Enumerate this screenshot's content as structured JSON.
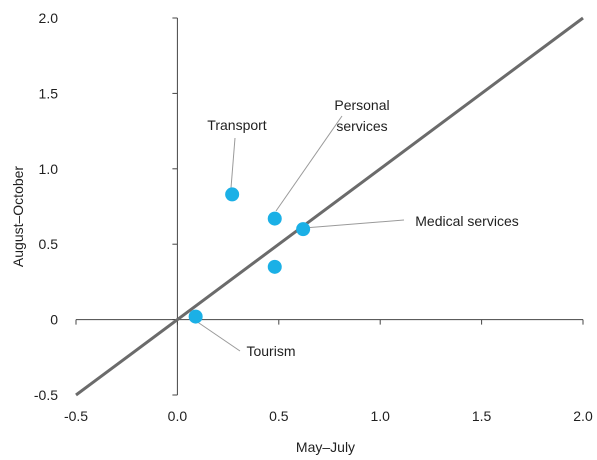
{
  "chart_data": {
    "type": "scatter",
    "xlabel": "May–July",
    "ylabel": "August–October",
    "xlim": [
      -0.5,
      2.0
    ],
    "ylim": [
      -0.5,
      2.0
    ],
    "xticks": [
      "-0.5",
      "0.0",
      "0.5",
      "1.0",
      "1.5",
      "2.0"
    ],
    "yticks": [
      "2.0",
      "1.5",
      "1.0",
      "0.5",
      "0",
      "-0.5"
    ],
    "grid": false,
    "reference_line": {
      "from": [
        -0.5,
        -0.5
      ],
      "to": [
        2.0,
        2.0
      ],
      "color": "#6b6b6b"
    },
    "point_color": "#1bb0e6",
    "points": [
      {
        "label": "Transport",
        "x": 0.27,
        "y": 0.83
      },
      {
        "label": "Personal services",
        "x": 0.48,
        "y": 0.67
      },
      {
        "label": "Medical services",
        "x": 0.62,
        "y": 0.6
      },
      {
        "label": "",
        "x": 0.48,
        "y": 0.35
      },
      {
        "label": "Tourism",
        "x": 0.09,
        "y": 0.02
      }
    ],
    "annotations": [
      {
        "name": "annotation-transport",
        "lines": [
          "Transport"
        ],
        "point_index": 0
      },
      {
        "name": "annotation-personal-services",
        "lines": [
          "Personal",
          "services"
        ],
        "point_index": 1
      },
      {
        "name": "annotation-medical-services",
        "lines": [
          "Medical services"
        ],
        "point_index": 2
      },
      {
        "name": "annotation-tourism",
        "lines": [
          "Tourism"
        ],
        "point_index": 4
      }
    ]
  }
}
